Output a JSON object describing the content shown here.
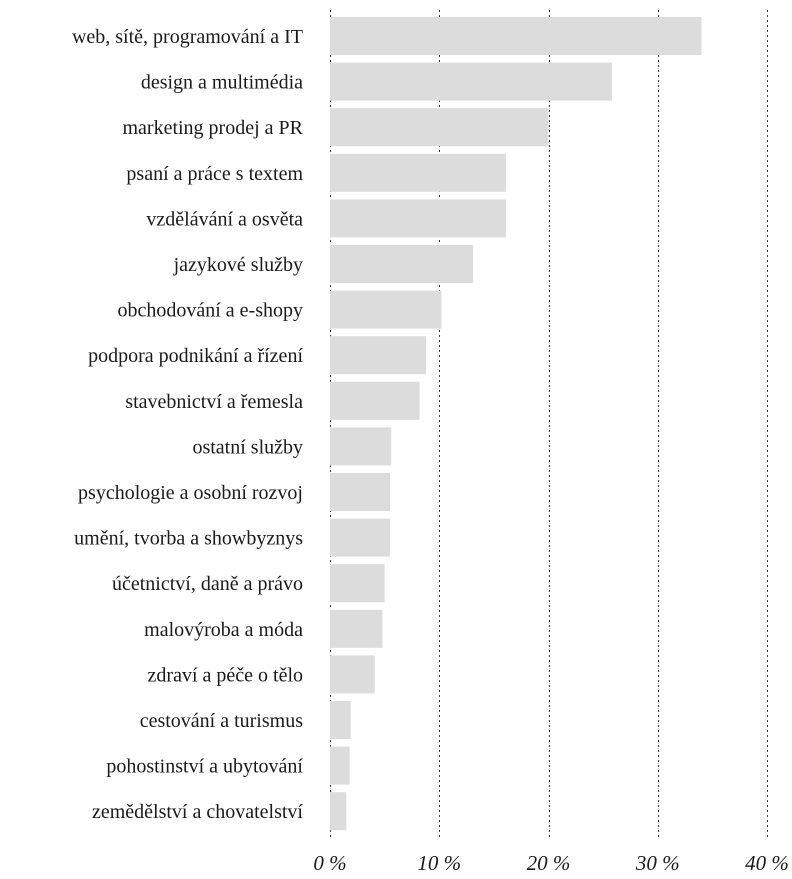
{
  "chart_data": {
    "type": "bar",
    "orientation": "horizontal",
    "title": "",
    "xlabel": "",
    "ylabel": "",
    "categories": [
      "web, sítě, programování a IT",
      "design a multimédia",
      "marketing prodej a PR",
      "psaní a práce s textem",
      "vzdělávání a osvěta",
      "jazykové služby",
      "obchodování a e-shopy",
      "podpora podnikání a řízení",
      "stavebnictví a řemesla",
      "ostatní služby",
      "psychologie a osobní rozvoj",
      "umění, tvorba a showbyznys",
      "účetnictví, daně a právo",
      "malovýroba a móda",
      "zdraví a péče o tělo",
      "cestování a turismus",
      "pohostinství a ubytování",
      "zemědělství a chovatelství"
    ],
    "values": [
      34.0,
      25.8,
      20.0,
      16.1,
      16.1,
      13.1,
      10.2,
      8.8,
      8.2,
      5.6,
      5.5,
      5.5,
      5.0,
      4.8,
      4.1,
      1.9,
      1.8,
      1.5
    ],
    "xlim": [
      0,
      40
    ],
    "ticks": [
      0,
      10,
      20,
      30,
      40
    ],
    "tick_labels": [
      "0 %",
      "10 %",
      "20 %",
      "30 %",
      "40 %"
    ],
    "grid": true,
    "legend": "none",
    "colors": {
      "bar": "#dcdcdc",
      "grid": "#333333",
      "text": "#1a1a1a"
    }
  }
}
